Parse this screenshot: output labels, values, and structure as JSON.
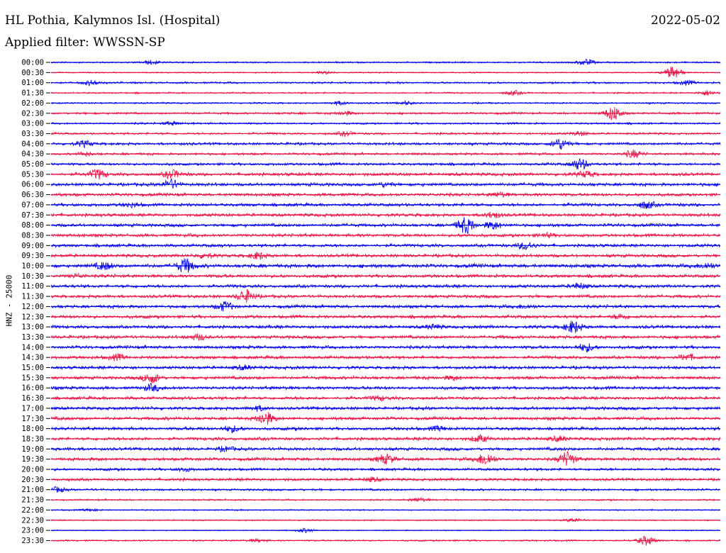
{
  "header": {
    "station": "HL Pothia, Kalymnos Isl. (Hospital)",
    "date": "2022-05-02",
    "filter": "Applied filter: WWSSN-SP"
  },
  "colors": {
    "blue": "#0000ee",
    "red": "#ee1144"
  },
  "chart_data": {
    "type": "line",
    "title": "HL Pothia, Kalymnos Isl. (Hospital)",
    "ylabel": "HNZ - 25000",
    "series": [
      {
        "name": "",
        "color_key": "blue"
      },
      {
        "name": "",
        "color_key": "red"
      }
    ],
    "grid": false,
    "legend": "none",
    "rows": [
      {
        "time": "00:00",
        "color": "blue",
        "amp": 1.5,
        "events": [
          {
            "x": 0.15,
            "a": 3
          },
          {
            "x": 0.8,
            "a": 5
          }
        ]
      },
      {
        "time": "00:30",
        "color": "red",
        "amp": 1.2,
        "events": [
          {
            "x": 0.93,
            "a": 10
          },
          {
            "x": 0.41,
            "a": 2
          }
        ]
      },
      {
        "time": "01:00",
        "color": "blue",
        "amp": 1.8,
        "events": [
          {
            "x": 0.06,
            "a": 4
          },
          {
            "x": 0.95,
            "a": 3
          }
        ]
      },
      {
        "time": "01:30",
        "color": "red",
        "amp": 1.5,
        "events": [
          {
            "x": 0.69,
            "a": 3
          },
          {
            "x": 0.98,
            "a": 4
          }
        ]
      },
      {
        "time": "02:00",
        "color": "blue",
        "amp": 1.5,
        "events": [
          {
            "x": 0.43,
            "a": 3
          },
          {
            "x": 0.53,
            "a": 3
          }
        ]
      },
      {
        "time": "02:30",
        "color": "red",
        "amp": 2.0,
        "events": [
          {
            "x": 0.84,
            "a": 10
          },
          {
            "x": 0.44,
            "a": 3
          }
        ]
      },
      {
        "time": "03:00",
        "color": "blue",
        "amp": 1.8,
        "events": [
          {
            "x": 0.18,
            "a": 3
          }
        ]
      },
      {
        "time": "03:30",
        "color": "red",
        "amp": 2.0,
        "events": [
          {
            "x": 0.44,
            "a": 3
          },
          {
            "x": 0.79,
            "a": 3
          }
        ]
      },
      {
        "time": "04:00",
        "color": "blue",
        "amp": 2.5,
        "events": [
          {
            "x": 0.76,
            "a": 8
          },
          {
            "x": 0.05,
            "a": 4
          }
        ]
      },
      {
        "time": "04:30",
        "color": "red",
        "amp": 2.2,
        "events": [
          {
            "x": 0.87,
            "a": 5
          },
          {
            "x": 0.05,
            "a": 3
          }
        ]
      },
      {
        "time": "05:00",
        "color": "blue",
        "amp": 2.5,
        "events": [
          {
            "x": 0.79,
            "a": 9
          }
        ]
      },
      {
        "time": "05:30",
        "color": "red",
        "amp": 3.0,
        "events": [
          {
            "x": 0.07,
            "a": 7
          },
          {
            "x": 0.18,
            "a": 6
          },
          {
            "x": 0.8,
            "a": 4
          }
        ]
      },
      {
        "time": "06:00",
        "color": "blue",
        "amp": 3.0,
        "events": [
          {
            "x": 0.18,
            "a": 8
          },
          {
            "x": 0.5,
            "a": 3
          }
        ]
      },
      {
        "time": "06:30",
        "color": "red",
        "amp": 3.0,
        "events": [
          {
            "x": 0.67,
            "a": 3
          }
        ]
      },
      {
        "time": "07:00",
        "color": "blue",
        "amp": 3.0,
        "events": [
          {
            "x": 0.89,
            "a": 6
          },
          {
            "x": 0.12,
            "a": 3
          }
        ]
      },
      {
        "time": "07:30",
        "color": "red",
        "amp": 3.0,
        "events": [
          {
            "x": 0.66,
            "a": 4
          }
        ]
      },
      {
        "time": "08:00",
        "color": "blue",
        "amp": 3.0,
        "events": [
          {
            "x": 0.62,
            "a": 12
          },
          {
            "x": 0.66,
            "a": 6
          }
        ]
      },
      {
        "time": "08:30",
        "color": "red",
        "amp": 3.0,
        "events": [
          {
            "x": 0.74,
            "a": 3
          }
        ]
      },
      {
        "time": "09:00",
        "color": "blue",
        "amp": 3.0,
        "events": [
          {
            "x": 0.71,
            "a": 6
          }
        ]
      },
      {
        "time": "09:30",
        "color": "red",
        "amp": 3.0,
        "events": [
          {
            "x": 0.31,
            "a": 5
          },
          {
            "x": 0.23,
            "a": 4
          }
        ]
      },
      {
        "time": "10:00",
        "color": "blue",
        "amp": 3.5,
        "events": [
          {
            "x": 0.2,
            "a": 10
          },
          {
            "x": 0.08,
            "a": 5
          },
          {
            "x": 0.98,
            "a": 4
          }
        ]
      },
      {
        "time": "10:30",
        "color": "red",
        "amp": 3.0,
        "events": [
          {
            "x": 0.04,
            "a": 3
          }
        ]
      },
      {
        "time": "11:00",
        "color": "blue",
        "amp": 3.0,
        "events": [
          {
            "x": 0.79,
            "a": 4
          }
        ]
      },
      {
        "time": "11:30",
        "color": "red",
        "amp": 3.0,
        "events": [
          {
            "x": 0.29,
            "a": 10
          }
        ]
      },
      {
        "time": "12:00",
        "color": "blue",
        "amp": 3.0,
        "events": [
          {
            "x": 0.26,
            "a": 6
          },
          {
            "x": 0.71,
            "a": 3
          }
        ]
      },
      {
        "time": "12:30",
        "color": "red",
        "amp": 3.0,
        "events": [
          {
            "x": 0.85,
            "a": 3
          }
        ]
      },
      {
        "time": "13:00",
        "color": "blue",
        "amp": 3.0,
        "events": [
          {
            "x": 0.78,
            "a": 9
          },
          {
            "x": 0.57,
            "a": 3
          }
        ]
      },
      {
        "time": "13:30",
        "color": "red",
        "amp": 3.0,
        "events": [
          {
            "x": 0.22,
            "a": 4
          }
        ]
      },
      {
        "time": "14:00",
        "color": "blue",
        "amp": 3.0,
        "events": [
          {
            "x": 0.8,
            "a": 6
          }
        ]
      },
      {
        "time": "14:30",
        "color": "red",
        "amp": 3.0,
        "events": [
          {
            "x": 0.95,
            "a": 5
          },
          {
            "x": 0.1,
            "a": 4
          }
        ]
      },
      {
        "time": "15:00",
        "color": "blue",
        "amp": 3.0,
        "events": [
          {
            "x": 0.29,
            "a": 3
          }
        ]
      },
      {
        "time": "15:30",
        "color": "red",
        "amp": 3.0,
        "events": [
          {
            "x": 0.15,
            "a": 7
          },
          {
            "x": 0.6,
            "a": 3
          }
        ]
      },
      {
        "time": "16:00",
        "color": "blue",
        "amp": 3.0,
        "events": [
          {
            "x": 0.15,
            "a": 5
          }
        ]
      },
      {
        "time": "16:30",
        "color": "red",
        "amp": 3.0,
        "events": [
          {
            "x": 0.49,
            "a": 3
          }
        ]
      },
      {
        "time": "17:00",
        "color": "blue",
        "amp": 3.0,
        "events": [
          {
            "x": 0.31,
            "a": 3
          }
        ]
      },
      {
        "time": "17:30",
        "color": "red",
        "amp": 3.0,
        "events": [
          {
            "x": 0.32,
            "a": 9
          }
        ]
      },
      {
        "time": "18:00",
        "color": "blue",
        "amp": 3.0,
        "events": [
          {
            "x": 0.27,
            "a": 5
          },
          {
            "x": 0.58,
            "a": 4
          }
        ]
      },
      {
        "time": "18:30",
        "color": "red",
        "amp": 3.0,
        "events": [
          {
            "x": 0.64,
            "a": 5
          },
          {
            "x": 0.76,
            "a": 4
          }
        ]
      },
      {
        "time": "19:00",
        "color": "blue",
        "amp": 3.0,
        "events": [
          {
            "x": 0.26,
            "a": 3
          }
        ]
      },
      {
        "time": "19:30",
        "color": "red",
        "amp": 3.0,
        "events": [
          {
            "x": 0.5,
            "a": 7
          },
          {
            "x": 0.65,
            "a": 9
          },
          {
            "x": 0.77,
            "a": 10
          }
        ]
      },
      {
        "time": "20:00",
        "color": "blue",
        "amp": 2.5,
        "events": [
          {
            "x": 0.2,
            "a": 3
          }
        ]
      },
      {
        "time": "20:30",
        "color": "red",
        "amp": 2.5,
        "events": [
          {
            "x": 0.48,
            "a": 3
          }
        ]
      },
      {
        "time": "21:00",
        "color": "blue",
        "amp": 2.0,
        "events": [
          {
            "x": 0.01,
            "a": 4
          }
        ]
      },
      {
        "time": "21:30",
        "color": "red",
        "amp": 1.5,
        "events": [
          {
            "x": 0.55,
            "a": 3
          }
        ]
      },
      {
        "time": "22:00",
        "color": "blue",
        "amp": 1.2,
        "events": [
          {
            "x": 0.06,
            "a": 2
          }
        ]
      },
      {
        "time": "22:30",
        "color": "red",
        "amp": 1.2,
        "events": [
          {
            "x": 0.78,
            "a": 3
          }
        ]
      },
      {
        "time": "23:00",
        "color": "blue",
        "amp": 1.0,
        "events": [
          {
            "x": 0.38,
            "a": 3
          }
        ]
      },
      {
        "time": "23:30",
        "color": "red",
        "amp": 1.5,
        "events": [
          {
            "x": 0.89,
            "a": 7
          },
          {
            "x": 0.31,
            "a": 2
          }
        ]
      }
    ]
  }
}
